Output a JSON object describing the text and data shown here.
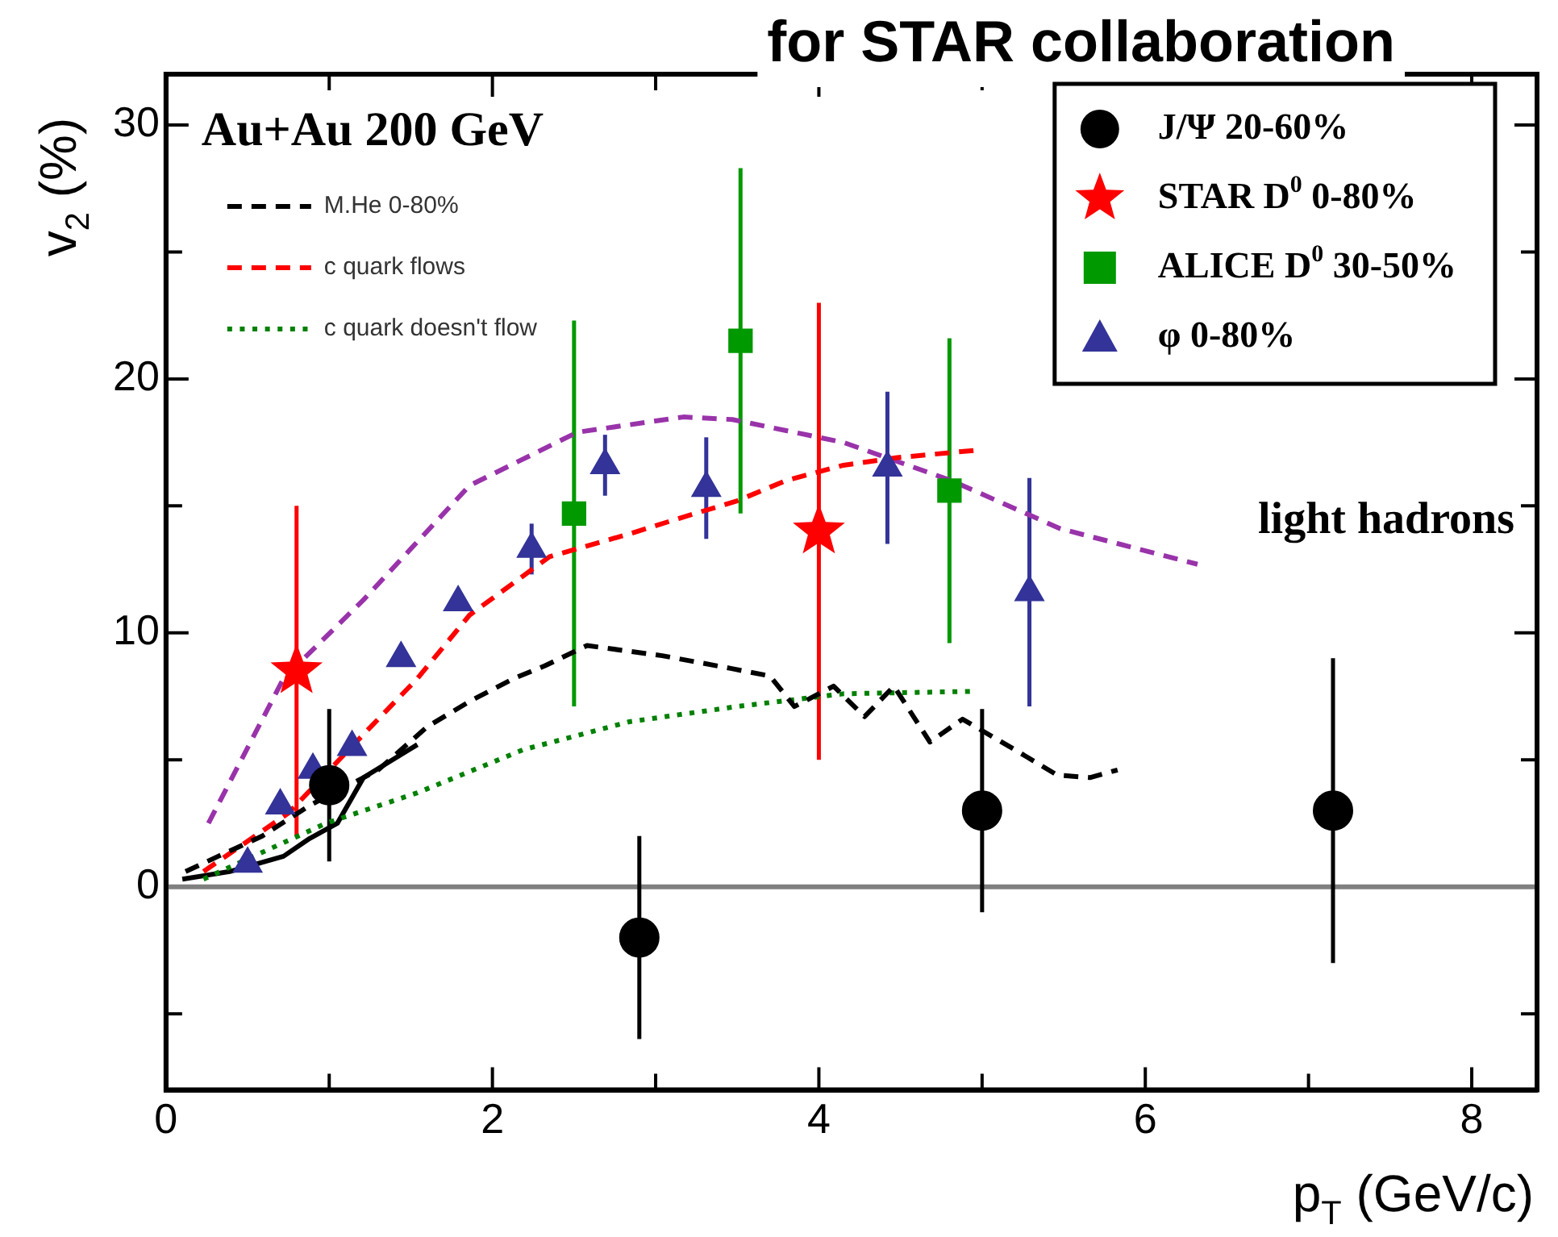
{
  "chart_data": {
    "type": "scatter",
    "title": "for STAR collaboration",
    "xlabel": "p$_{T}$ (GeV/c)",
    "ylabel": "v$_{2}$ (%)",
    "xlim": [
      0,
      8.4
    ],
    "ylim": [
      -8,
      32
    ],
    "xticks": [
      0,
      {
        "value": 1,
        "label": null
      },
      2,
      {
        "value": 3,
        "label": null
      },
      4,
      {
        "value": 5,
        "label": null
      },
      6,
      {
        "value": 7,
        "label": null
      },
      8
    ],
    "yticks": [
      {
        "value": -5,
        "label": null
      },
      0,
      {
        "value": 5,
        "label": null
      },
      10,
      {
        "value": 15,
        "label": null
      },
      20,
      {
        "value": 25,
        "label": null
      },
      30
    ],
    "grid": false,
    "legend": "top right",
    "ref_lines": [
      {
        "axis": "y",
        "value": 0,
        "color": "#808080"
      }
    ],
    "annotations": [
      "Au+Au 200 GeV",
      "light hadrons"
    ],
    "series": [
      {
        "name": "J/Ψ 20-60%",
        "type": "scatter",
        "marker": "circle",
        "color": "#000000",
        "x": [
          1.0,
          2.9,
          5.0,
          7.15
        ],
        "values": [
          4,
          -2,
          3,
          3
        ],
        "errors": [
          3,
          4,
          4,
          6
        ]
      },
      {
        "name": "STAR D$^{0}$ 0-80%",
        "type": "scatter",
        "marker": "star",
        "color": "#ff0000",
        "x": [
          0.8,
          4.0
        ],
        "values": [
          8.5,
          14
        ],
        "errors": [
          6.5,
          9
        ]
      },
      {
        "name": "ALICE D$^{0}$ 30-50%",
        "type": "scatter",
        "marker": "square",
        "color": "#009900",
        "x": [
          2.5,
          3.52,
          4.8
        ],
        "values": [
          14.7,
          21.5,
          15.6
        ],
        "errors": [
          7.6,
          6.8,
          [
            9.6,
            21.6
          ]
        ]
      },
      {
        "name": "φ 0-80%",
        "type": "scatter",
        "marker": "triangle",
        "color": "#333399",
        "x": [
          0.5,
          0.7,
          0.9,
          1.14,
          1.44,
          1.79,
          2.24,
          2.69,
          3.31,
          4.42,
          5.29
        ],
        "values": [
          0.9,
          3.2,
          4.6,
          5.5,
          9.0,
          11.2,
          13.3,
          16.6,
          15.7,
          16.5,
          11.6
        ],
        "errors": [
          null,
          null,
          null,
          null,
          null,
          null,
          1,
          1.2,
          2,
          3,
          4.5
        ]
      },
      {
        "name": "M.He 0-80%",
        "type": "line",
        "marker": "none",
        "line_style": "dashed",
        "color": "#000000",
        "x": [
          0.12,
          0.32,
          0.59,
          0.88,
          1.3,
          1.6,
          1.86,
          2.13,
          2.32,
          2.58,
          3.04,
          3.46,
          3.7,
          3.85,
          4.09,
          4.28,
          4.46,
          4.68,
          4.88,
          5.2,
          5.46,
          5.66,
          5.83
        ],
        "values": [
          0.6,
          1.2,
          2.0,
          3.2,
          4.6,
          6.3,
          7.3,
          8.2,
          8.7,
          9.5,
          9.1,
          8.6,
          8.3,
          7.1,
          7.9,
          6.7,
          7.9,
          5.7,
          6.6,
          5.4,
          4.4,
          4.3,
          4.6
        ]
      },
      {
        "name": "c quark flows",
        "type": "line",
        "marker": "none",
        "line_style": "dashed",
        "color": "#ff0000",
        "x": [
          0.23,
          0.75,
          1.15,
          1.54,
          1.86,
          2.35,
          2.84,
          3.14,
          3.5,
          3.8,
          4.15,
          4.48,
          4.98
        ],
        "values": [
          0.6,
          2.9,
          5.6,
          8.2,
          10.7,
          13.0,
          13.9,
          14.5,
          15.2,
          16.0,
          16.6,
          16.9,
          17.2
        ]
      },
      {
        "name": "c quark doesn't flow",
        "type": "line",
        "marker": "none",
        "line_style": "dotted",
        "color": "#008000",
        "x": [
          0.23,
          0.98,
          1.54,
          2.19,
          2.84,
          3.5,
          4.15,
          4.97
        ],
        "values": [
          0.3,
          2.5,
          3.7,
          5.4,
          6.5,
          7.1,
          7.6,
          7.7
        ]
      },
      {
        "type": "line",
        "marker": "none",
        "line_style": "solid",
        "color": "#000000",
        "x": [
          0.1,
          0.39,
          0.72,
          0.88,
          1.05,
          1.21,
          1.54
        ],
        "values": [
          0.3,
          0.6,
          1.2,
          1.9,
          2.5,
          4.3,
          5.6
        ]
      },
      {
        "type": "line",
        "marker": "none",
        "line_style": "dashed",
        "color": "#9933aa",
        "x": [
          0.26,
          0.72,
          1.21,
          1.86,
          2.52,
          3.17,
          3.47,
          4.15,
          4.81,
          5.48,
          6.32
        ],
        "values": [
          2.5,
          8.2,
          11.3,
          15.8,
          17.9,
          18.5,
          18.4,
          17.5,
          16.0,
          14.1,
          12.7
        ]
      }
    ]
  }
}
